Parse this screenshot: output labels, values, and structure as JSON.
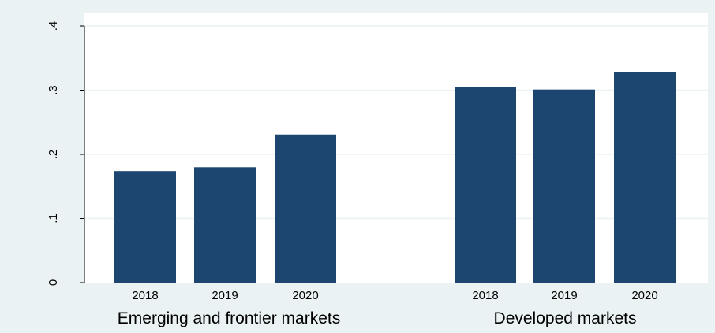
{
  "colors": {
    "background": "#eaf2f3",
    "plot_background": "#ffffff",
    "bar": "#1c466f",
    "grid": "#eaf2f3",
    "axis": "#000000"
  },
  "chart_data": {
    "type": "bar",
    "title": "",
    "xlabel": "",
    "ylabel": "",
    "ylim": [
      0,
      0.4
    ],
    "yticks": [
      0,
      0.1,
      0.2,
      0.3,
      0.4
    ],
    "ytick_labels": [
      "0",
      ".1",
      ".2",
      ".3",
      ".4"
    ],
    "grid": true,
    "legend": "none",
    "groups": [
      {
        "label": "Emerging and frontier markets",
        "categories": [
          "2018",
          "2019",
          "2020"
        ],
        "values": [
          0.174,
          0.18,
          0.231
        ]
      },
      {
        "label": "Developed markets",
        "categories": [
          "2018",
          "2019",
          "2020"
        ],
        "values": [
          0.305,
          0.301,
          0.328
        ]
      }
    ]
  }
}
